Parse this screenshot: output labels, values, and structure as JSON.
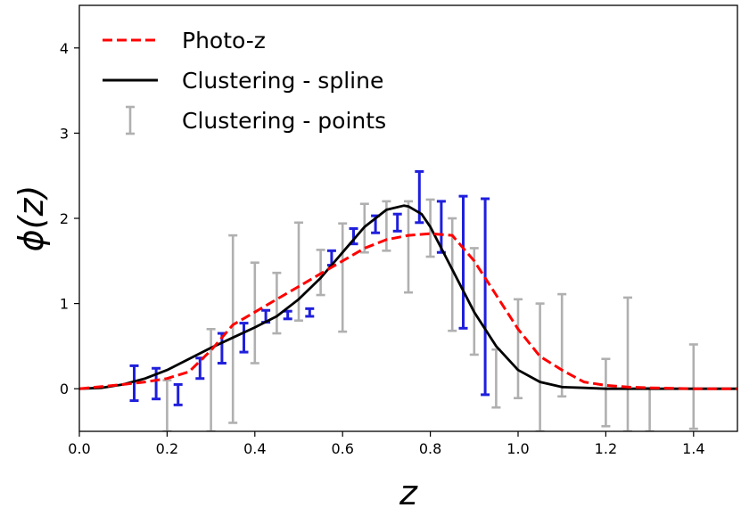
{
  "chart_data": {
    "type": "line",
    "xlabel": "z",
    "ylabel": "ϕ(z)",
    "xlim": [
      0.0,
      1.5
    ],
    "ylim": [
      -0.5,
      4.5
    ],
    "xticks": [
      "0.0",
      "0.2",
      "0.4",
      "0.6",
      "0.8",
      "1.0",
      "1.2",
      "1.4"
    ],
    "yticks": [
      "0",
      "1",
      "2",
      "3",
      "4"
    ],
    "grid": false,
    "legend_position": "top-left",
    "legend": [
      "Photo-z",
      "Clustering - spline",
      "Clustering - points"
    ],
    "colors": {
      "photo_z": "#ff0000",
      "spline": "#000000",
      "points_blue": "#1f1fdd",
      "points_gray": "#b0b0b0"
    },
    "series": [
      {
        "name": "Photo-z",
        "style": "dashed",
        "x": [
          0.0,
          0.1,
          0.15,
          0.2,
          0.25,
          0.28,
          0.3,
          0.35,
          0.4,
          0.45,
          0.5,
          0.55,
          0.6,
          0.65,
          0.7,
          0.75,
          0.8,
          0.85,
          0.9,
          0.95,
          1.0,
          1.05,
          1.1,
          1.15,
          1.2,
          1.25,
          1.3,
          1.4,
          1.5
        ],
        "y": [
          0.0,
          0.05,
          0.08,
          0.12,
          0.2,
          0.35,
          0.45,
          0.75,
          0.9,
          1.05,
          1.2,
          1.35,
          1.5,
          1.65,
          1.75,
          1.8,
          1.82,
          1.8,
          1.5,
          1.1,
          0.7,
          0.38,
          0.22,
          0.08,
          0.04,
          0.02,
          0.01,
          0.0,
          0.0
        ]
      },
      {
        "name": "Clustering - spline",
        "style": "solid",
        "x": [
          0.0,
          0.05,
          0.1,
          0.15,
          0.2,
          0.25,
          0.3,
          0.35,
          0.4,
          0.45,
          0.5,
          0.55,
          0.6,
          0.65,
          0.7,
          0.74,
          0.75,
          0.78,
          0.8,
          0.85,
          0.9,
          0.95,
          1.0,
          1.05,
          1.1,
          1.15,
          1.2,
          1.3,
          1.4,
          1.5
        ],
        "y": [
          0.0,
          0.01,
          0.05,
          0.12,
          0.22,
          0.35,
          0.48,
          0.6,
          0.72,
          0.85,
          1.05,
          1.3,
          1.6,
          1.9,
          2.1,
          2.15,
          2.14,
          2.05,
          1.9,
          1.4,
          0.9,
          0.5,
          0.22,
          0.08,
          0.02,
          0.01,
          0.0,
          0.0,
          0.0,
          0.0
        ]
      },
      {
        "name": "Clustering - points",
        "style": "errorbar",
        "points": [
          {
            "x": 0.125,
            "lo": -0.14,
            "hi": 0.27,
            "color": "blue"
          },
          {
            "x": 0.175,
            "lo": -0.12,
            "hi": 0.24,
            "color": "blue"
          },
          {
            "x": 0.2,
            "lo": -0.5,
            "hi": 0.1,
            "color": "gray"
          },
          {
            "x": 0.225,
            "lo": -0.19,
            "hi": 0.05,
            "color": "blue"
          },
          {
            "x": 0.275,
            "lo": 0.12,
            "hi": 0.36,
            "color": "blue"
          },
          {
            "x": 0.3,
            "lo": -0.5,
            "hi": 0.7,
            "color": "gray"
          },
          {
            "x": 0.325,
            "lo": 0.3,
            "hi": 0.65,
            "color": "blue"
          },
          {
            "x": 0.35,
            "lo": -0.4,
            "hi": 1.8,
            "color": "gray"
          },
          {
            "x": 0.375,
            "lo": 0.43,
            "hi": 0.77,
            "color": "blue"
          },
          {
            "x": 0.4,
            "lo": 0.3,
            "hi": 1.48,
            "color": "gray"
          },
          {
            "x": 0.425,
            "lo": 0.78,
            "hi": 0.92,
            "color": "blue"
          },
          {
            "x": 0.45,
            "lo": 0.65,
            "hi": 1.36,
            "color": "gray"
          },
          {
            "x": 0.475,
            "lo": 0.82,
            "hi": 0.91,
            "color": "blue"
          },
          {
            "x": 0.5,
            "lo": 0.8,
            "hi": 1.95,
            "color": "gray"
          },
          {
            "x": 0.525,
            "lo": 0.85,
            "hi": 0.94,
            "color": "blue"
          },
          {
            "x": 0.55,
            "lo": 1.1,
            "hi": 1.63,
            "color": "gray"
          },
          {
            "x": 0.575,
            "lo": 1.45,
            "hi": 1.62,
            "color": "blue"
          },
          {
            "x": 0.6,
            "lo": 0.67,
            "hi": 1.94,
            "color": "gray"
          },
          {
            "x": 0.625,
            "lo": 1.7,
            "hi": 1.88,
            "color": "blue"
          },
          {
            "x": 0.65,
            "lo": 1.6,
            "hi": 2.17,
            "color": "gray"
          },
          {
            "x": 0.675,
            "lo": 1.83,
            "hi": 2.03,
            "color": "blue"
          },
          {
            "x": 0.7,
            "lo": 1.62,
            "hi": 2.2,
            "color": "gray"
          },
          {
            "x": 0.725,
            "lo": 1.85,
            "hi": 2.05,
            "color": "blue"
          },
          {
            "x": 0.75,
            "lo": 1.13,
            "hi": 2.2,
            "color": "gray"
          },
          {
            "x": 0.775,
            "lo": 1.95,
            "hi": 2.55,
            "color": "blue"
          },
          {
            "x": 0.8,
            "lo": 1.55,
            "hi": 2.22,
            "color": "gray"
          },
          {
            "x": 0.825,
            "lo": 1.6,
            "hi": 2.2,
            "color": "blue"
          },
          {
            "x": 0.85,
            "lo": 0.68,
            "hi": 2.0,
            "color": "gray"
          },
          {
            "x": 0.875,
            "lo": 0.71,
            "hi": 2.26,
            "color": "blue"
          },
          {
            "x": 0.9,
            "lo": 0.4,
            "hi": 1.65,
            "color": "gray"
          },
          {
            "x": 0.925,
            "lo": -0.07,
            "hi": 2.23,
            "color": "blue"
          },
          {
            "x": 0.95,
            "lo": -0.22,
            "hi": 0.46,
            "color": "gray"
          },
          {
            "x": 1.0,
            "lo": -0.11,
            "hi": 1.05,
            "color": "gray"
          },
          {
            "x": 1.05,
            "lo": -0.5,
            "hi": 1.0,
            "color": "gray"
          },
          {
            "x": 1.1,
            "lo": -0.09,
            "hi": 1.11,
            "color": "gray"
          },
          {
            "x": 1.2,
            "lo": -0.44,
            "hi": 0.35,
            "color": "gray"
          },
          {
            "x": 1.25,
            "lo": -0.5,
            "hi": 1.07,
            "color": "gray"
          },
          {
            "x": 1.3,
            "lo": -0.5,
            "hi": 0.01,
            "color": "gray"
          },
          {
            "x": 1.4,
            "lo": -0.47,
            "hi": 0.52,
            "color": "gray"
          }
        ]
      }
    ]
  }
}
